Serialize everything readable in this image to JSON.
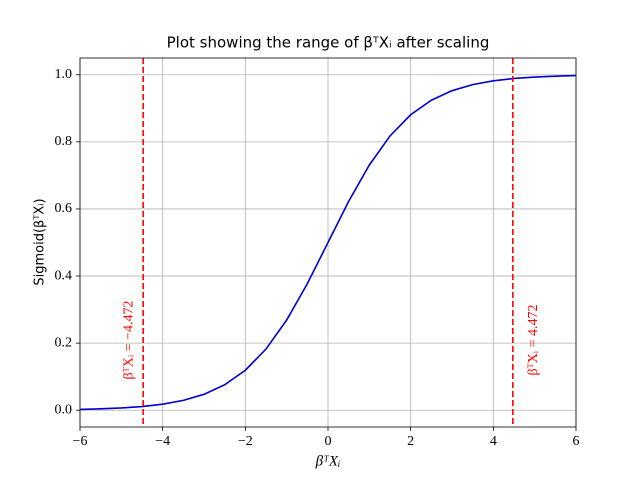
{
  "chart_data": {
    "type": "line",
    "title": "Plot showing the range of βᵀXᵢ after scaling",
    "x_label": "βᵀXᵢ",
    "y_label": "Sigmoid(βᵀXᵢ)",
    "x": [
      -6,
      -5.5,
      -5,
      -4.5,
      -4,
      -3.5,
      -3,
      -2.5,
      -2,
      -1.5,
      -1,
      -0.5,
      0,
      0.5,
      1,
      1.5,
      2,
      2.5,
      3,
      3.5,
      4,
      4.5,
      5,
      5.5,
      6
    ],
    "series": [
      {
        "name": "Sigmoid(βᵀXᵢ)",
        "color": "#0000cc",
        "values": [
          0.0025,
          0.0041,
          0.0067,
          0.011,
          0.018,
          0.0293,
          0.0474,
          0.0759,
          0.1192,
          0.1824,
          0.2689,
          0.3775,
          0.5,
          0.6225,
          0.7311,
          0.8176,
          0.8808,
          0.9241,
          0.9526,
          0.9707,
          0.982,
          0.989,
          0.9933,
          0.9959,
          0.9975
        ]
      }
    ],
    "vlines": [
      {
        "x": -4.472,
        "label": "βᵀXᵢ = −4.472",
        "color": "#ff0000"
      },
      {
        "x": 4.472,
        "label": "βᵀXᵢ = 4.472",
        "color": "#ff0000"
      }
    ],
    "xlim": [
      -6,
      6
    ],
    "ylim": [
      -0.05,
      1.05
    ],
    "xticks": [
      {
        "value": -6,
        "label": "−6"
      },
      {
        "value": -4,
        "label": "−4"
      },
      {
        "value": -2,
        "label": "−2"
      },
      0,
      2,
      4,
      6
    ],
    "yticks": [
      {
        "value": 0,
        "label": "0.0"
      },
      0.2,
      0.4,
      0.6,
      0.8,
      {
        "value": 1,
        "label": "1.0"
      }
    ],
    "grid": true
  }
}
